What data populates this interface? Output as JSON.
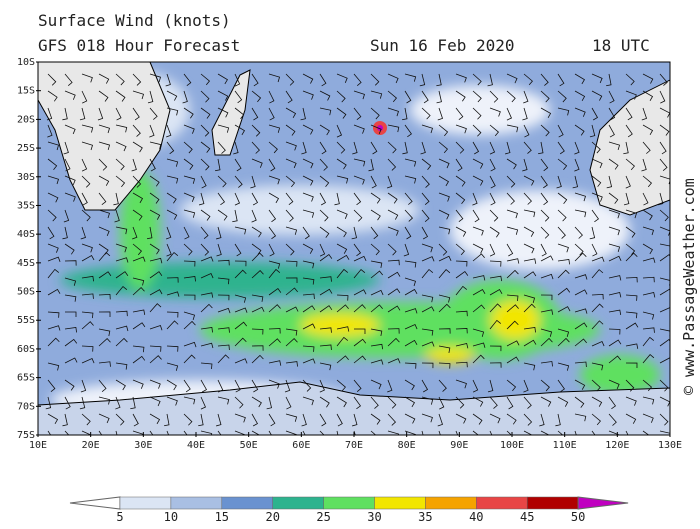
{
  "header": {
    "title": "Surface Wind (knots)",
    "subtitle": "GFS 018 Hour Forecast",
    "date": "Sun 16 Feb 2020",
    "time": "18 UTC"
  },
  "credit": "© www.PassageWeather.com",
  "lat_labels": [
    "10S",
    "15S",
    "20S",
    "25S",
    "30S",
    "35S",
    "40S",
    "45S",
    "50S",
    "55S",
    "60S",
    "65S",
    "70S",
    "75S"
  ],
  "lon_labels": [
    "10E",
    "20E",
    "30E",
    "40E",
    "50E",
    "60E",
    "70E",
    "80E",
    "90E",
    "100E",
    "110E",
    "120E",
    "130E"
  ],
  "legend": {
    "labels": [
      "5",
      "10",
      "15",
      "20",
      "25",
      "30",
      "35",
      "40",
      "45",
      "50"
    ],
    "colors": [
      "#ffffff",
      "#dbe5f4",
      "#a9bfe3",
      "#6a92d0",
      "#2db38e",
      "#5fe060",
      "#f2e600",
      "#f5a300",
      "#e84545",
      "#b00000",
      "#c000c0"
    ]
  }
}
